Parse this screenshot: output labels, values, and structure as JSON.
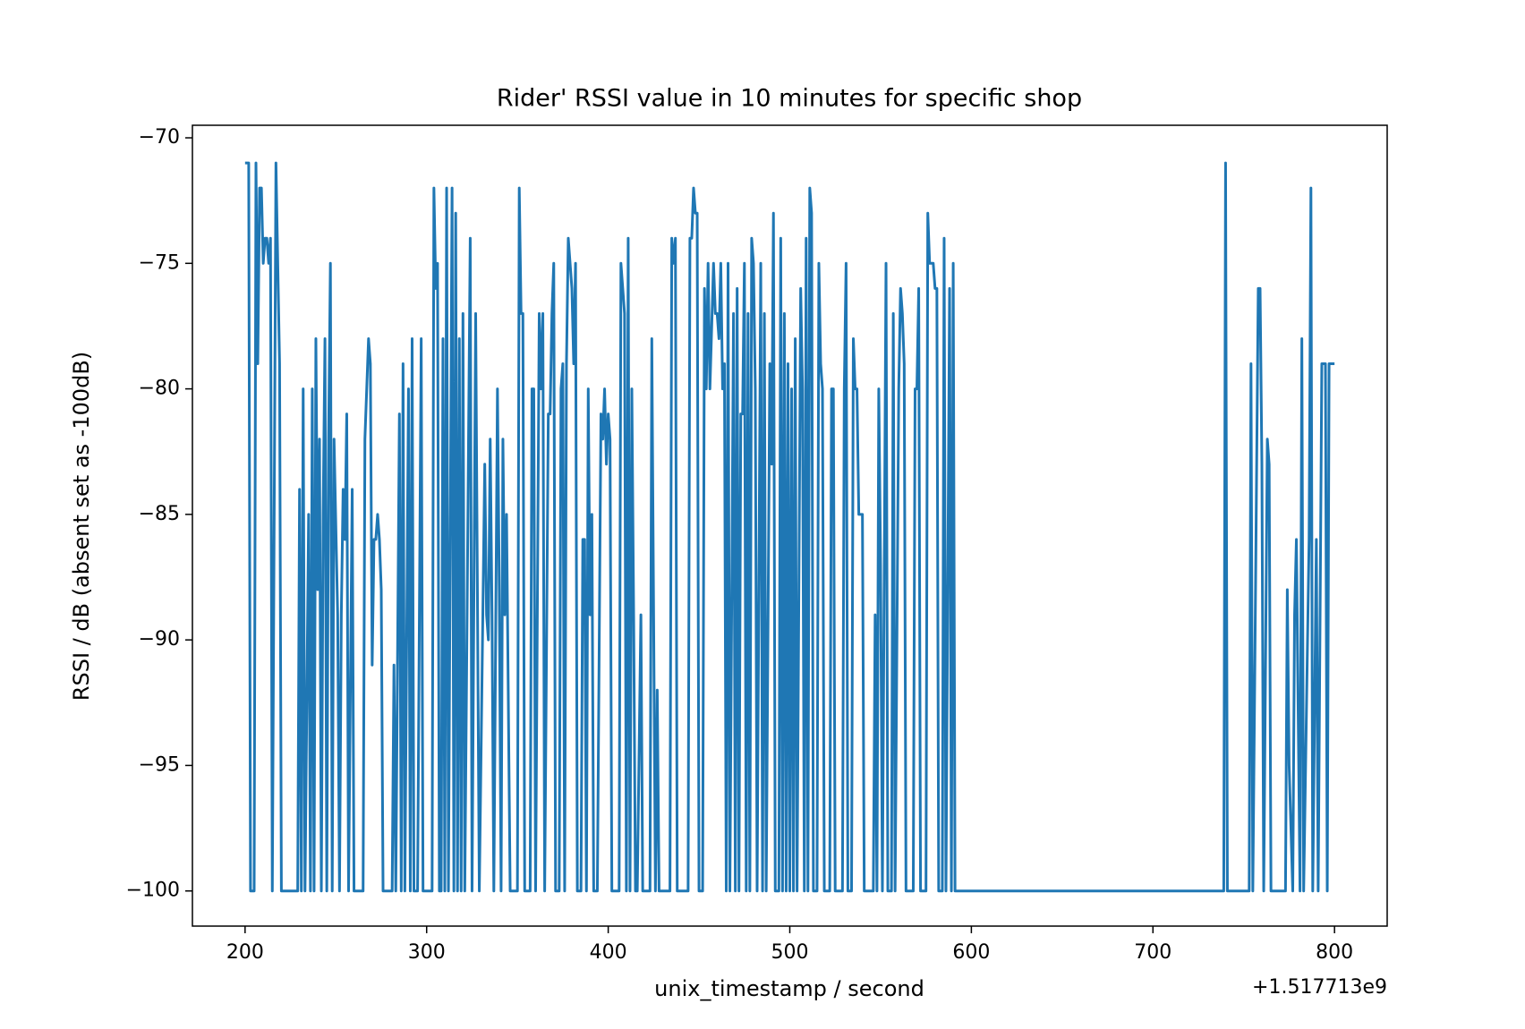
{
  "chart_data": {
    "type": "line",
    "title": "Rider' RSSI value in 10 minutes for specific shop",
    "xlabel": "unix_timestamp / second",
    "ylabel": "RSSI / dB (absent set as -100dB)",
    "x_offset_text": "+1.517713e9",
    "color": "#1f77b4",
    "xlim": [
      171,
      829
    ],
    "ylim": [
      -101.4,
      -69.5
    ],
    "xticks": [
      200,
      300,
      400,
      500,
      600,
      700,
      800
    ],
    "yticks": [
      {
        "value": -70,
        "label": "−70"
      },
      {
        "value": -75,
        "label": "−75"
      },
      {
        "value": -80,
        "label": "−80"
      },
      {
        "value": -85,
        "label": "−85"
      },
      {
        "value": -90,
        "label": "−90"
      },
      {
        "value": -95,
        "label": "−95"
      },
      {
        "value": -100,
        "label": "−100"
      }
    ],
    "x": [
      200,
      202,
      203,
      205,
      206,
      207,
      208,
      209,
      210,
      211,
      212,
      213,
      214,
      215,
      217,
      219,
      220,
      229,
      230,
      231,
      232,
      233,
      235,
      236,
      237,
      238,
      239,
      240,
      241,
      242,
      243,
      244,
      245,
      246,
      247,
      248,
      249,
      251,
      252,
      253,
      254,
      255,
      256,
      257,
      259,
      260,
      265,
      266,
      268,
      269,
      270,
      271,
      272,
      273,
      274,
      275,
      276,
      281,
      282,
      283,
      285,
      286,
      287,
      288,
      290,
      291,
      292,
      293,
      295,
      297,
      298,
      303,
      304,
      305,
      306,
      307,
      308,
      309,
      310,
      311,
      312,
      314,
      315,
      316,
      317,
      318,
      319,
      320,
      321,
      324,
      325,
      327,
      329,
      332,
      333,
      334,
      335,
      336,
      337,
      339,
      340,
      341,
      342,
      343,
      344,
      346,
      350,
      351,
      352,
      353,
      354,
      357,
      358,
      359,
      360,
      362,
      363,
      364,
      365,
      367,
      368,
      369,
      370,
      371,
      373,
      374,
      375,
      376,
      377,
      378,
      380,
      381,
      382,
      383,
      385,
      386,
      387,
      388,
      389,
      390,
      391,
      392,
      394,
      396,
      397,
      398,
      399,
      400,
      401,
      402,
      406,
      407,
      409,
      410,
      411,
      412,
      413,
      414,
      415,
      416,
      418,
      419,
      423,
      424,
      426,
      427,
      428,
      434,
      435,
      436,
      437,
      438,
      444,
      445,
      446,
      447,
      448,
      449,
      450,
      452,
      453,
      454,
      455,
      456,
      458,
      459,
      460,
      461,
      462,
      463,
      464,
      465,
      466,
      467,
      469,
      470,
      471,
      472,
      473,
      474,
      475,
      476,
      477,
      478,
      479,
      480,
      481,
      482,
      484,
      485,
      486,
      487,
      489,
      490,
      491,
      492,
      494,
      495,
      496,
      497,
      498,
      499,
      500,
      501,
      502,
      503,
      504,
      506,
      507,
      508,
      509,
      510,
      511,
      512,
      513,
      515,
      516,
      517,
      518,
      519,
      522,
      523,
      524,
      525,
      529,
      530,
      531,
      532,
      534,
      535,
      536,
      537,
      538,
      540,
      541,
      546,
      547,
      548,
      549,
      550,
      551,
      553,
      554,
      556,
      557,
      558,
      560,
      561,
      562,
      563,
      564,
      568,
      569,
      570,
      571,
      572,
      575,
      576,
      577,
      578,
      579,
      580,
      581,
      582,
      584,
      585,
      586,
      588,
      589,
      590,
      591,
      592,
      739,
      740,
      741,
      753,
      754,
      755,
      758,
      759,
      760,
      761,
      763,
      764,
      765,
      773,
      774,
      775,
      777,
      778,
      779,
      781,
      782,
      783,
      786,
      787,
      788,
      790,
      791,
      793,
      795,
      796,
      797,
      799,
      800
    ],
    "values": [
      -71,
      -71,
      -100,
      -100,
      -71,
      -79,
      -72,
      -72,
      -75,
      -74,
      -74,
      -75,
      -74,
      -100,
      -71,
      -79,
      -100,
      -100,
      -84,
      -100,
      -80,
      -100,
      -85,
      -100,
      -80,
      -100,
      -78,
      -88,
      -82,
      -100,
      -85,
      -78,
      -100,
      -82,
      -75,
      -100,
      -82,
      -89,
      -100,
      -89,
      -84,
      -86,
      -81,
      -100,
      -84,
      -100,
      -100,
      -82,
      -78,
      -79,
      -91,
      -86,
      -86,
      -85,
      -86,
      -88,
      -100,
      -100,
      -91,
      -100,
      -81,
      -100,
      -79,
      -100,
      -80,
      -100,
      -78,
      -100,
      -100,
      -78,
      -100,
      -100,
      -72,
      -76,
      -75,
      -100,
      -100,
      -78,
      -100,
      -72,
      -100,
      -72,
      -100,
      -73,
      -100,
      -78,
      -100,
      -77,
      -100,
      -74,
      -100,
      -77,
      -100,
      -83,
      -89,
      -90,
      -82,
      -89,
      -100,
      -80,
      -88,
      -100,
      -82,
      -89,
      -85,
      -100,
      -100,
      -72,
      -77,
      -77,
      -100,
      -100,
      -80,
      -80,
      -100,
      -77,
      -80,
      -77,
      -100,
      -81,
      -81,
      -77,
      -75,
      -100,
      -100,
      -80,
      -79,
      -100,
      -79,
      -74,
      -76,
      -79,
      -75,
      -100,
      -100,
      -86,
      -86,
      -100,
      -80,
      -89,
      -85,
      -100,
      -100,
      -81,
      -82,
      -80,
      -83,
      -81,
      -82,
      -100,
      -100,
      -75,
      -77,
      -100,
      -74,
      -100,
      -80,
      -89,
      -100,
      -100,
      -89,
      -100,
      -100,
      -78,
      -100,
      -92,
      -100,
      -100,
      -74,
      -75,
      -74,
      -100,
      -100,
      -74,
      -74,
      -72,
      -73,
      -73,
      -100,
      -100,
      -76,
      -80,
      -75,
      -80,
      -75,
      -77,
      -77,
      -78,
      -75,
      -80,
      -79,
      -100,
      -75,
      -100,
      -77,
      -100,
      -76,
      -100,
      -81,
      -81,
      -75,
      -100,
      -77,
      -100,
      -74,
      -75,
      -80,
      -100,
      -75,
      -100,
      -77,
      -100,
      -79,
      -83,
      -73,
      -100,
      -100,
      -74,
      -100,
      -77,
      -100,
      -79,
      -100,
      -80,
      -100,
      -78,
      -100,
      -76,
      -80,
      -100,
      -74,
      -100,
      -72,
      -73,
      -100,
      -100,
      -75,
      -79,
      -80,
      -100,
      -100,
      -80,
      -80,
      -100,
      -100,
      -80,
      -75,
      -100,
      -100,
      -78,
      -80,
      -80,
      -85,
      -85,
      -100,
      -100,
      -89,
      -100,
      -80,
      -87,
      -100,
      -75,
      -100,
      -100,
      -77,
      -100,
      -80,
      -76,
      -77,
      -79,
      -100,
      -100,
      -80,
      -80,
      -76,
      -100,
      -100,
      -73,
      -75,
      -75,
      -75,
      -76,
      -76,
      -100,
      -100,
      -74,
      -100,
      -76,
      -100,
      -75,
      -100,
      -100,
      -100,
      -71,
      -100,
      -100,
      -79,
      -100,
      -76,
      -76,
      -83,
      -100,
      -82,
      -83,
      -100,
      -100,
      -88,
      -95,
      -100,
      -89,
      -86,
      -100,
      -78,
      -100,
      -86,
      -72,
      -100,
      -86,
      -100,
      -79,
      -79,
      -100,
      -79,
      -79,
      -79
    ]
  }
}
